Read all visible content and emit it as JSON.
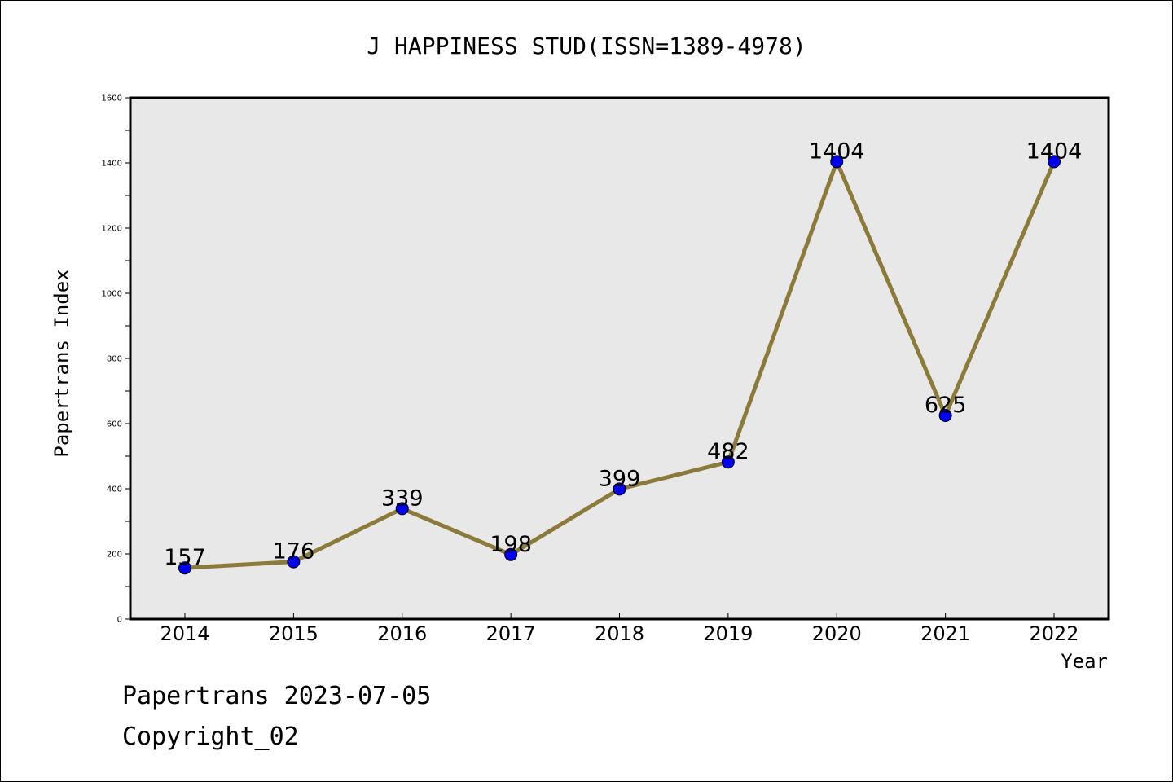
{
  "chart_data": {
    "type": "line",
    "title": "J HAPPINESS STUD(ISSN=1389-4978)",
    "xlabel": "Year",
    "ylabel": "Papertrans Index",
    "categories": [
      "2014",
      "2015",
      "2016",
      "2017",
      "2018",
      "2019",
      "2020",
      "2021",
      "2022"
    ],
    "values": [
      157,
      176,
      339,
      198,
      399,
      482,
      1404,
      625,
      1404
    ],
    "data_labels": [
      "157",
      "176",
      "339",
      "198",
      "399",
      "482",
      "1404",
      "625",
      "1404"
    ],
    "ylim": [
      0,
      1600
    ],
    "yticks": [
      "0",
      "200",
      "400",
      "600",
      "800",
      "1000",
      "1200",
      "1400",
      "1600"
    ],
    "grid": false,
    "colors": {
      "line": "#8b7a3a",
      "marker": "#0000ee",
      "plot_bg": "#e8e8e8"
    }
  },
  "footer": {
    "line1": "Papertrans 2023-07-05",
    "line2": "Copyright_02"
  }
}
